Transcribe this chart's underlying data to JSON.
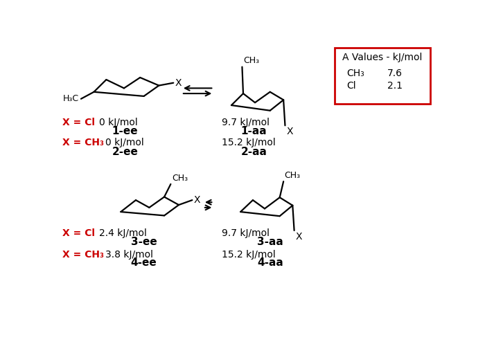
{
  "bg_color": "#ffffff",
  "red_color": "#cc0000",
  "black_color": "#000000",
  "box_title": "A Values - kJ/mol",
  "top_left_label_cl": "X = Cl",
  "top_left_val_cl": "0 kJ/mol",
  "top_left_name_cl": "1-ee",
  "top_left_label_ch3": "X = CH₃",
  "top_left_val_ch3": "0 kJ/mol",
  "top_left_name_ch3": "2-ee",
  "top_right_val_cl": "9.7 kJ/mol",
  "top_right_name_cl": "1-aa",
  "top_right_val_ch3": "15.2 kJ/mol",
  "top_right_name_ch3": "2-aa",
  "bot_left_label_cl": "X = Cl",
  "bot_left_val_cl": "2.4 kJ/mol",
  "bot_left_name_cl": "3-ee",
  "bot_left_label_ch3": "X = CH₃",
  "bot_left_val_ch3": "3.8 kJ/mol",
  "bot_left_name_ch3": "4-ee",
  "bot_right_val_cl": "9.7 kJ/mol",
  "bot_right_name_cl": "3-aa",
  "bot_right_val_ch3": "15.2 kJ/mol",
  "bot_right_name_ch3": "4-aa",
  "ch3_aval": "7.6",
  "cl_aval": "2.1"
}
